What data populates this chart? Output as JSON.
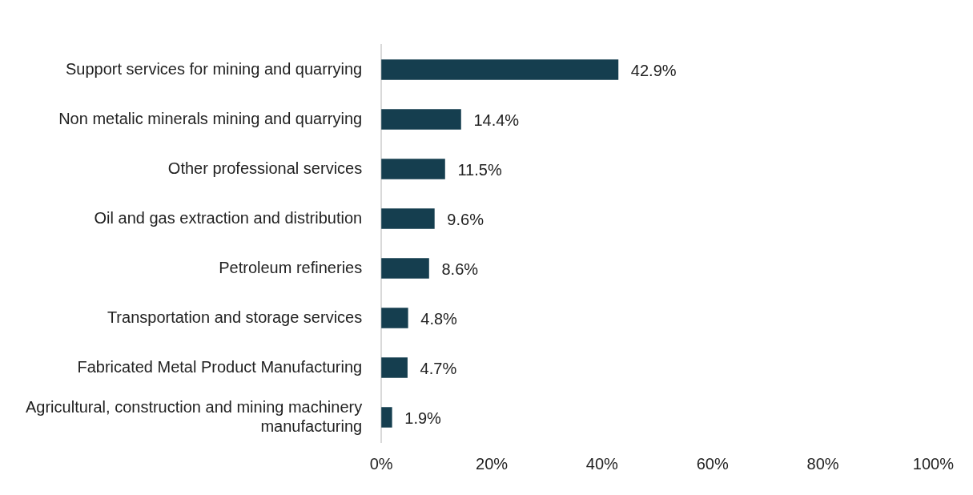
{
  "chart_data": {
    "type": "bar",
    "orientation": "horizontal",
    "categories": [
      "Support services for mining and quarrying",
      "Non metalic minerals mining and quarrying",
      "Other professional services",
      "Oil and gas extraction and distribution",
      "Petroleum refineries",
      "Transportation and storage services",
      "Fabricated Metal Product Manufacturing",
      "Agricultural, construction and mining machinery manufacturing"
    ],
    "values": [
      42.9,
      14.4,
      11.5,
      9.6,
      8.6,
      4.8,
      4.7,
      1.9
    ],
    "value_labels": [
      "42.9%",
      "14.4%",
      "11.5%",
      "9.6%",
      "8.6%",
      "4.8%",
      "4.7%",
      "1.9%"
    ],
    "color": "#153e4f",
    "xlim": [
      0,
      100
    ],
    "xticks": [
      {
        "value": 0,
        "label": "0%"
      },
      {
        "value": 20,
        "label": "20%"
      },
      {
        "value": 40,
        "label": "40%"
      },
      {
        "value": 60,
        "label": "60%"
      },
      {
        "value": 80,
        "label": "80%"
      },
      {
        "value": 100,
        "label": "100%"
      }
    ],
    "grid": false,
    "legend": false
  }
}
